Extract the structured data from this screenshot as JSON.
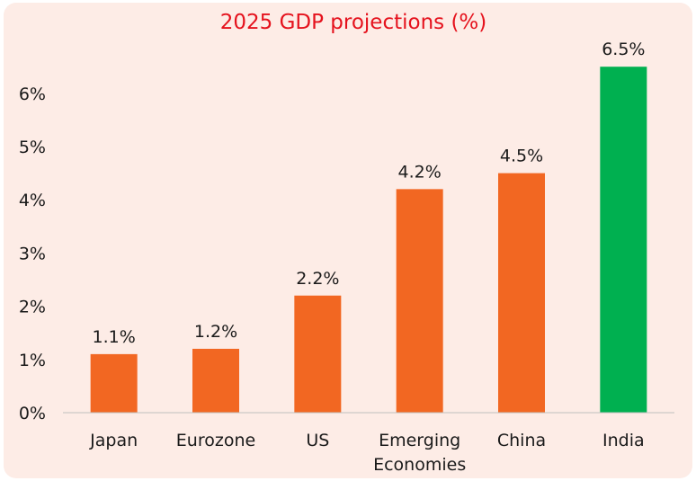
{
  "colors": {
    "background": "#fdece6",
    "title": "#e5121d",
    "bar": "#f26722",
    "highlight": "#00b050",
    "axis": "#bfbfbf"
  },
  "chart_data": {
    "type": "bar",
    "title": "2025 GDP projections (%)",
    "xlabel": "",
    "ylabel": "",
    "ylim": [
      0,
      6.5
    ],
    "yticks": [
      {
        "value": 0,
        "label": "0%"
      },
      {
        "value": 1,
        "label": "1%"
      },
      {
        "value": 2,
        "label": "2%"
      },
      {
        "value": 3,
        "label": "3%"
      },
      {
        "value": 4,
        "label": "4%"
      },
      {
        "value": 5,
        "label": "5%"
      },
      {
        "value": 6,
        "label": "6%"
      }
    ],
    "grid": false,
    "legend": "none",
    "bars": [
      {
        "category": [
          "Japan"
        ],
        "value": 1.1,
        "label": "1.1%",
        "color": "#f26722"
      },
      {
        "category": [
          "Eurozone"
        ],
        "value": 1.2,
        "label": "1.2%",
        "color": "#f26722"
      },
      {
        "category": [
          "US"
        ],
        "value": 2.2,
        "label": "2.2%",
        "color": "#f26722"
      },
      {
        "category": [
          "Emerging",
          "Economies"
        ],
        "value": 4.2,
        "label": "4.2%",
        "color": "#f26722"
      },
      {
        "category": [
          "China"
        ],
        "value": 4.5,
        "label": "4.5%",
        "color": "#f26722"
      },
      {
        "category": [
          "India"
        ],
        "value": 6.5,
        "label": "6.5%",
        "color": "#00b050"
      }
    ]
  }
}
